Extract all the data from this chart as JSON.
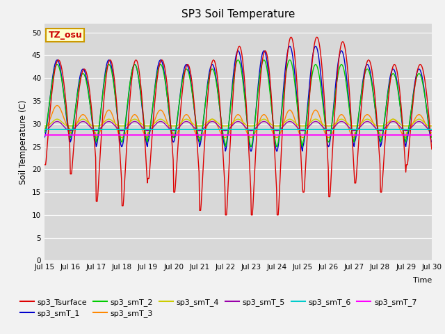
{
  "title": "SP3 Soil Temperature",
  "xlabel": "Time",
  "ylabel": "Soil Temperature (C)",
  "ylim": [
    0,
    52
  ],
  "yticks": [
    0,
    5,
    10,
    15,
    20,
    25,
    30,
    35,
    40,
    45,
    50
  ],
  "xtick_labels": [
    "Jul 15",
    "Jul 16",
    "Jul 17",
    "Jul 18",
    "Jul 19",
    "Jul 20",
    "Jul 21",
    "Jul 22",
    "Jul 23",
    "Jul 24",
    "Jul 25",
    "Jul 26",
    "Jul 27",
    "Jul 28",
    "Jul 29",
    "Jul 30"
  ],
  "annotation_text": "TZ_osu",
  "annotation_color": "#cc0000",
  "annotation_bg": "#ffffcc",
  "annotation_border": "#cc9900",
  "series_colors": {
    "sp3_Tsurface": "#dd0000",
    "sp3_smT_1": "#0000cc",
    "sp3_smT_2": "#00cc00",
    "sp3_smT_3": "#ff8800",
    "sp3_smT_4": "#cccc00",
    "sp3_smT_5": "#9900aa",
    "sp3_smT_6": "#00cccc",
    "sp3_smT_7": "#ff00ff"
  },
  "fig_bg_color": "#f2f2f2",
  "plot_bg_color": "#d8d8d8",
  "grid_color": "#ffffff",
  "num_days": 15,
  "pts_per_day": 48
}
